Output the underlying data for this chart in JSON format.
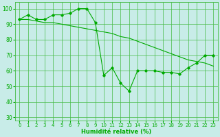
{
  "xlabel": "Humidité relative (%)",
  "bg_color": "#c8ece8",
  "grid_color": "#44bb44",
  "line_color": "#00aa00",
  "xlim": [
    -0.5,
    23.5
  ],
  "ylim": [
    28,
    104
  ],
  "yticks": [
    30,
    40,
    50,
    60,
    70,
    80,
    90,
    100
  ],
  "xticks": [
    0,
    1,
    2,
    3,
    4,
    5,
    6,
    7,
    8,
    9,
    10,
    11,
    12,
    13,
    14,
    15,
    16,
    17,
    18,
    19,
    20,
    21,
    22,
    23
  ],
  "series1_x": [
    0,
    1,
    2,
    3,
    4,
    5,
    6,
    7,
    8,
    9,
    10,
    11,
    12,
    13,
    14,
    15,
    16,
    17,
    18,
    19,
    20,
    21,
    22,
    23
  ],
  "series1_y": [
    93,
    96,
    93,
    93,
    96,
    96,
    97,
    100,
    100,
    91,
    57,
    62,
    52,
    47,
    60,
    60,
    60,
    59,
    59,
    58,
    62,
    65,
    70,
    70
  ],
  "series2_x": [
    0,
    1,
    2,
    3,
    4,
    5,
    6,
    7,
    8,
    9,
    10,
    11,
    12,
    13,
    14,
    15,
    16,
    17,
    18,
    19,
    20,
    21,
    22,
    23
  ],
  "series2_y": [
    93,
    93,
    92,
    91,
    91,
    90,
    89,
    88,
    87,
    86,
    85,
    84,
    82,
    81,
    79,
    77,
    75,
    73,
    71,
    69,
    67,
    66,
    65,
    63
  ]
}
